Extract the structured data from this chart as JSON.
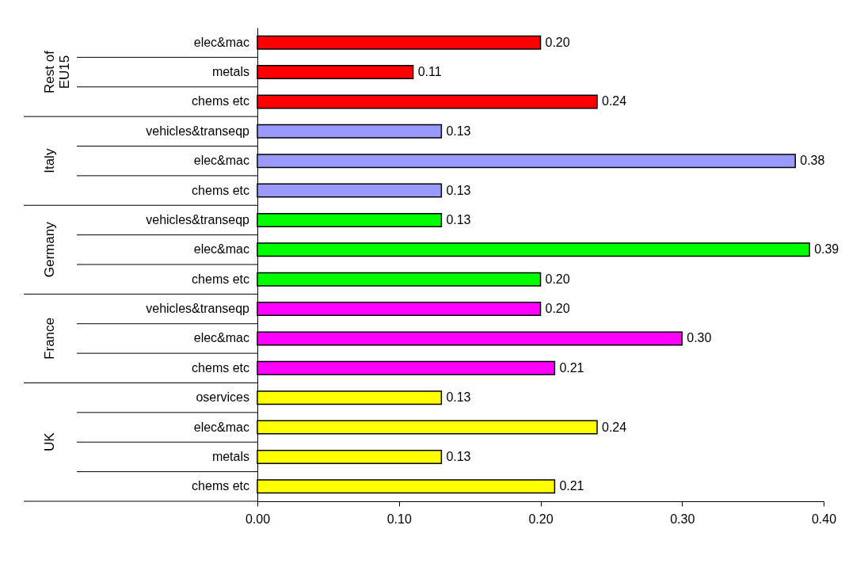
{
  "chart_data": {
    "type": "bar",
    "orientation": "horizontal",
    "categories": [
      "elec&mac",
      "metals",
      "chems etc",
      "vehicles&transeqp",
      "elec&mac",
      "chems etc",
      "vehicles&transeqp",
      "elec&mac",
      "chems etc",
      "vehicles&transeqp",
      "elec&mac",
      "chems etc",
      "oservices",
      "elec&mac",
      "metals",
      "chems etc"
    ],
    "series": [
      {
        "color": "#ff0000",
        "values": [
          0.2,
          0.11,
          0.24,
          null,
          null,
          null,
          null,
          null,
          null,
          null,
          null,
          null,
          null,
          null,
          null,
          null
        ],
        "value_labels": [
          "0.20",
          "0.11",
          "0.24",
          null,
          null,
          null,
          null,
          null,
          null,
          null,
          null,
          null,
          null,
          null,
          null,
          null
        ]
      },
      {
        "color": "#9999ff",
        "values": [
          null,
          null,
          null,
          0.13,
          0.38,
          0.13,
          null,
          null,
          null,
          null,
          null,
          null,
          null,
          null,
          null,
          null
        ],
        "value_labels": [
          null,
          null,
          null,
          "0.13",
          "0.38",
          "0.13",
          null,
          null,
          null,
          null,
          null,
          null,
          null,
          null,
          null,
          null
        ]
      },
      {
        "color": "#00ff00",
        "values": [
          null,
          null,
          null,
          null,
          null,
          null,
          0.13,
          0.39,
          0.2,
          null,
          null,
          null,
          null,
          null,
          null,
          null
        ],
        "value_labels": [
          null,
          null,
          null,
          null,
          null,
          null,
          "0.13",
          "0.39",
          "0.20",
          null,
          null,
          null,
          null,
          null,
          null,
          null
        ]
      },
      {
        "color": "#ff00ff",
        "values": [
          null,
          null,
          null,
          null,
          null,
          null,
          null,
          null,
          null,
          0.2,
          0.3,
          0.21,
          null,
          null,
          null,
          null
        ],
        "value_labels": [
          null,
          null,
          null,
          null,
          null,
          null,
          null,
          null,
          null,
          "0.20",
          "0.30",
          "0.21",
          null,
          null,
          null,
          null
        ]
      },
      {
        "color": "#ffff00",
        "values": [
          null,
          null,
          null,
          null,
          null,
          null,
          null,
          null,
          null,
          null,
          null,
          null,
          0.13,
          0.24,
          0.13,
          0.21
        ],
        "value_labels": [
          null,
          null,
          null,
          null,
          null,
          null,
          null,
          null,
          null,
          null,
          null,
          null,
          "0.13",
          "0.24",
          "0.13",
          "0.21"
        ]
      }
    ],
    "xlim": [
      0,
      0.4
    ],
    "xticks": [
      {
        "value": 0,
        "label": "0.00"
      },
      {
        "value": 0.1,
        "label": "0.10"
      },
      {
        "value": 0.2,
        "label": "0.20"
      },
      {
        "value": 0.3,
        "label": "0.30"
      },
      {
        "value": 0.4,
        "label": "0.40"
      }
    ],
    "annotations": [
      "Rest of EU15",
      "Italy",
      "Germany",
      "France",
      "UK"
    ],
    "grid": false,
    "legend": false
  }
}
